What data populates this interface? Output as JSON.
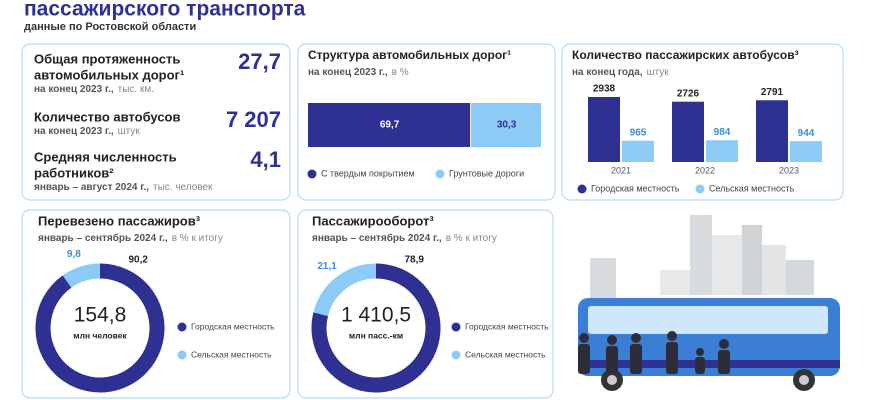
{
  "header": {
    "title": "пассажирского транспорта",
    "subtitle": "данные по Ростовской области"
  },
  "kpis": [
    {
      "label": [
        "Общая протяженность",
        "автомобильных дорог¹"
      ],
      "period": "на конец 2023 г.,",
      "unit": "тыс. км.",
      "value": "27,7"
    },
    {
      "label": [
        "Количество автобусов"
      ],
      "period": "на конец 2023 г.,",
      "unit": "штук",
      "value": "7 207"
    },
    {
      "label": [
        "Средняя численность",
        "работников²"
      ],
      "period": "январь – август 2024 г.,",
      "unit": "тыс. человек",
      "value": "4,1"
    }
  ],
  "chart_data": [
    {
      "type": "stacked-bar",
      "title": "Структура автомобильных дорог¹",
      "subtitle": "на конец 2023 г.,",
      "subtitle_unit": "в %",
      "xlim": [
        0,
        100
      ],
      "series": [
        {
          "name": "С твердым покрытием",
          "color": "#2e3092",
          "values": [
            69.7
          ],
          "value_labels": [
            "69,7"
          ]
        },
        {
          "name": "Грунтовые дороги",
          "color": "#8ccbf5",
          "values": [
            30.3
          ],
          "value_labels": [
            "30,3"
          ]
        }
      ]
    },
    {
      "type": "grouped-bar",
      "title": "Количество пассажирских автобусов³",
      "subtitle": "на конец года,",
      "subtitle_unit": "штук",
      "categories": [
        "2021",
        "2022",
        "2023"
      ],
      "series": [
        {
          "name": "Городская местность",
          "color": "#2e3092",
          "values": [
            2938,
            2726,
            2791
          ]
        },
        {
          "name": "Сельская местность",
          "color": "#8ccbf5",
          "values": [
            965,
            984,
            944
          ]
        }
      ]
    },
    {
      "type": "donut",
      "title": "Перевезено пассажиров³",
      "subtitle": "январь – сентябрь 2024 г.,",
      "subtitle_unit": "в % к итогу",
      "categories": [
        "Городская местность",
        "Сельская местность"
      ],
      "values": [
        90.2,
        9.8
      ],
      "value_labels": [
        "90,2",
        "9,8"
      ],
      "colors": [
        "#2e3092",
        "#8ccbf5"
      ],
      "center_value": "154,8",
      "center_unit": "млн человек"
    },
    {
      "type": "donut",
      "title": "Пассажирооборот³",
      "subtitle": "январь – сентябрь 2024 г.,",
      "subtitle_unit": "в % к итогу",
      "categories": [
        "Городская местность",
        "Сельская местность"
      ],
      "values": [
        78.9,
        21.1
      ],
      "value_labels": [
        "78,9",
        "21,1"
      ],
      "colors": [
        "#2e3092",
        "#8ccbf5"
      ],
      "center_value": "1 410,5",
      "center_unit": "млн пасс.-км"
    }
  ]
}
